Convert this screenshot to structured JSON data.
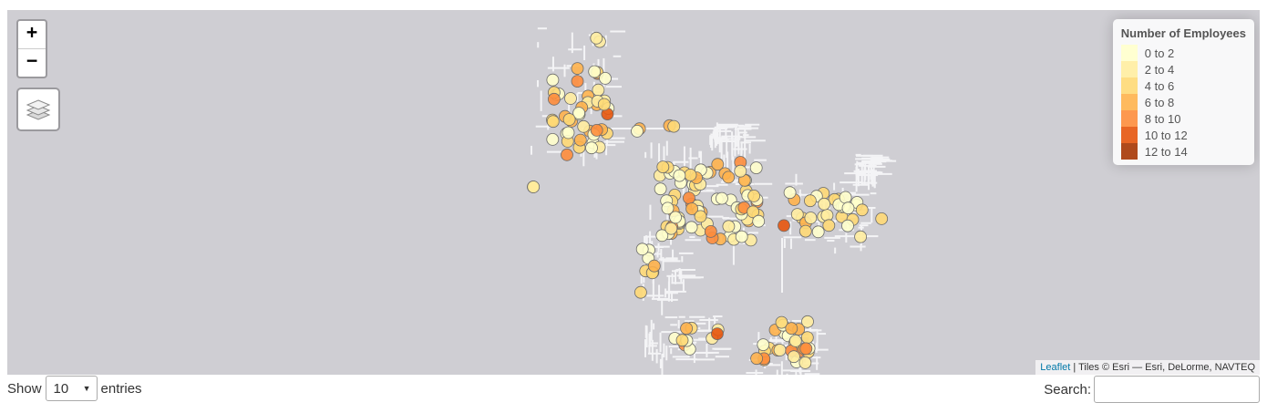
{
  "map": {
    "zoom_in_label": "+",
    "zoom_out_label": "−",
    "layers_icon": "layers-icon",
    "background_color": "#cfced3",
    "legend": {
      "title": "Number of Employees",
      "items": [
        {
          "label": "0 to 2",
          "color": "#ffffcc"
        },
        {
          "label": "2 to 4",
          "color": "#ffeda0"
        },
        {
          "label": "4 to 6",
          "color": "#fed976"
        },
        {
          "label": "6 to 8",
          "color": "#feb24c"
        },
        {
          "label": "8 to 10",
          "color": "#fd8d3c"
        },
        {
          "label": "10 to 12",
          "color": "#e6550d"
        },
        {
          "label": "12 to 14",
          "color": "#a63603"
        }
      ]
    },
    "attribution": {
      "link_text": "Leaflet",
      "text": " | Tiles © Esri — Esri, DeLorme, NAVTEQ"
    }
  },
  "table_controls": {
    "show_label": "Show",
    "entries_value": "10",
    "entries_label": "entries",
    "search_label": "Search:",
    "search_value": ""
  }
}
